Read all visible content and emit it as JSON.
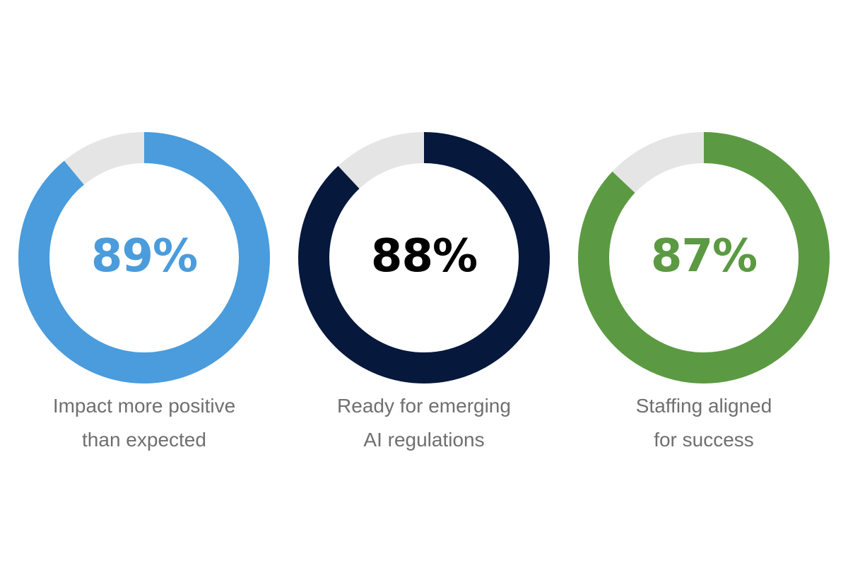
{
  "chart_data": [
    {
      "type": "pie",
      "value": 89,
      "value_text": "89%",
      "label_lines": [
        "Impact more positive",
        "than expected"
      ],
      "color": "#4a9cdc",
      "remainder_color": "#e5e5e5"
    },
    {
      "type": "pie",
      "value": 88,
      "value_text": "88%",
      "label_lines": [
        "Ready for emerging",
        "AI regulations"
      ],
      "color": "#06183c",
      "remainder_color": "#e5e5e5",
      "value_text_color": "#000000"
    },
    {
      "type": "pie",
      "value": 87,
      "value_text": "87%",
      "label_lines": [
        "Staffing aligned",
        "for success"
      ],
      "color": "#5b9a42",
      "remainder_color": "#e5e5e5"
    }
  ]
}
